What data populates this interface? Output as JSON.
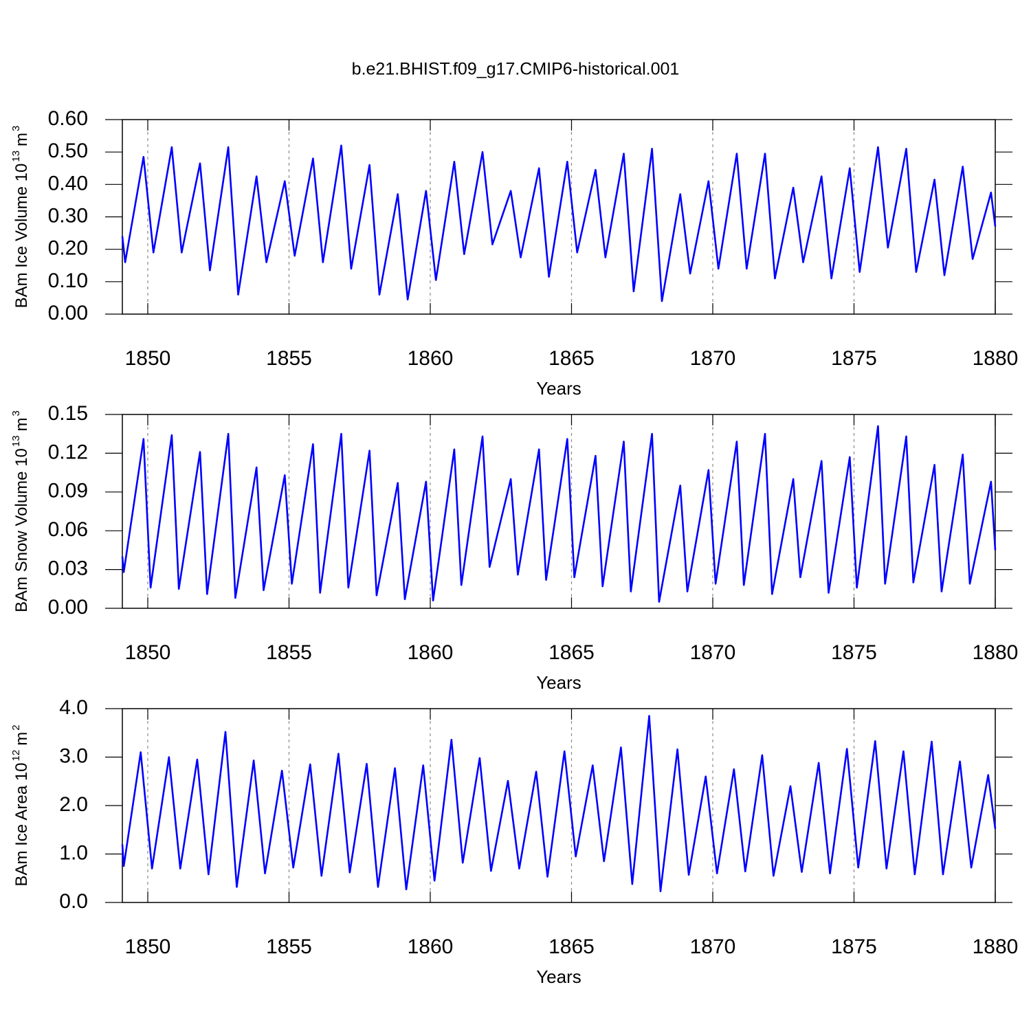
{
  "chart_data": [
    {
      "type": "line",
      "title": "b.e21.BHIST.f09_g17.CMIP6-historical.001",
      "xlabel": "Years",
      "ylabel": [
        "BAm Ice Volume 10",
        "13",
        "m",
        "3"
      ],
      "color": "#0000ff",
      "xgrid": true,
      "xlim": [
        1849.1,
        1880
      ],
      "xticks": [
        1850,
        1855,
        1860,
        1865,
        1870,
        1875,
        1880
      ],
      "ylim": [
        0,
        0.6
      ],
      "yticks": [
        {
          "value": 0,
          "label": "0.00"
        },
        {
          "value": 0.1,
          "label": "0.10"
        },
        {
          "value": 0.2,
          "label": "0.20"
        },
        {
          "value": 0.3,
          "label": "0.30"
        },
        {
          "value": 0.4,
          "label": "0.40"
        },
        {
          "value": 0.5,
          "label": "0.50"
        },
        {
          "value": 0.6,
          "label": "0.60"
        }
      ],
      "x": [
        1849.1,
        1849.2,
        1849.85,
        1850.2,
        1850.85,
        1851.2,
        1851.85,
        1852.2,
        1852.85,
        1853.2,
        1853.85,
        1854.2,
        1854.85,
        1855.2,
        1855.85,
        1856.2,
        1856.85,
        1857.2,
        1857.85,
        1858.2,
        1858.85,
        1859.2,
        1859.85,
        1860.2,
        1860.85,
        1861.2,
        1861.85,
        1862.2,
        1862.85,
        1863.2,
        1863.85,
        1864.2,
        1864.85,
        1865.2,
        1865.85,
        1866.2,
        1866.85,
        1867.2,
        1867.85,
        1868.2,
        1868.85,
        1869.2,
        1869.85,
        1870.2,
        1870.85,
        1871.2,
        1871.85,
        1872.2,
        1872.85,
        1873.2,
        1873.85,
        1874.2,
        1874.85,
        1875.2,
        1875.85,
        1876.2,
        1876.85,
        1877.2,
        1877.85,
        1878.2,
        1878.85,
        1879.2,
        1879.85,
        1880.0
      ],
      "values": [
        0.24,
        0.16,
        0.485,
        0.19,
        0.515,
        0.19,
        0.465,
        0.135,
        0.515,
        0.06,
        0.425,
        0.16,
        0.41,
        0.18,
        0.48,
        0.16,
        0.52,
        0.14,
        0.46,
        0.06,
        0.37,
        0.045,
        0.38,
        0.105,
        0.47,
        0.185,
        0.5,
        0.215,
        0.38,
        0.175,
        0.45,
        0.115,
        0.47,
        0.19,
        0.445,
        0.175,
        0.495,
        0.07,
        0.51,
        0.04,
        0.37,
        0.125,
        0.41,
        0.14,
        0.495,
        0.14,
        0.495,
        0.11,
        0.39,
        0.16,
        0.425,
        0.11,
        0.45,
        0.13,
        0.515,
        0.205,
        0.51,
        0.13,
        0.415,
        0.12,
        0.455,
        0.17,
        0.375,
        0.27
      ]
    },
    {
      "type": "line",
      "xlabel": "Years",
      "ylabel": [
        "BAm Snow Volume 10",
        "13",
        "m",
        "3"
      ],
      "color": "#0000ff",
      "xgrid": true,
      "xlim": [
        1849.1,
        1880
      ],
      "xticks": [
        1850,
        1855,
        1860,
        1865,
        1870,
        1875,
        1880
      ],
      "ylim": [
        0,
        0.15
      ],
      "yticks": [
        {
          "value": 0,
          "label": "0.00"
        },
        {
          "value": 0.03,
          "label": "0.03"
        },
        {
          "value": 0.06,
          "label": "0.06"
        },
        {
          "value": 0.09,
          "label": "0.09"
        },
        {
          "value": 0.12,
          "label": "0.12"
        },
        {
          "value": 0.15,
          "label": "0.15"
        }
      ],
      "x": [
        1849.1,
        1849.15,
        1849.85,
        1850.1,
        1850.85,
        1851.1,
        1851.85,
        1852.1,
        1852.85,
        1853.1,
        1853.85,
        1854.1,
        1854.85,
        1855.1,
        1855.85,
        1856.1,
        1856.85,
        1857.1,
        1857.85,
        1858.1,
        1858.85,
        1859.1,
        1859.85,
        1860.1,
        1860.85,
        1861.1,
        1861.85,
        1862.1,
        1862.85,
        1863.1,
        1863.85,
        1864.1,
        1864.85,
        1865.1,
        1865.85,
        1866.1,
        1866.85,
        1867.1,
        1867.85,
        1868.1,
        1868.85,
        1869.1,
        1869.85,
        1870.1,
        1870.85,
        1871.1,
        1871.85,
        1872.1,
        1872.85,
        1873.1,
        1873.85,
        1874.1,
        1874.85,
        1875.1,
        1875.85,
        1876.1,
        1876.85,
        1877.1,
        1877.85,
        1878.1,
        1878.85,
        1879.1,
        1879.85,
        1880.0
      ],
      "values": [
        0.04,
        0.028,
        0.131,
        0.016,
        0.134,
        0.015,
        0.121,
        0.011,
        0.135,
        0.008,
        0.109,
        0.014,
        0.103,
        0.019,
        0.127,
        0.012,
        0.135,
        0.016,
        0.122,
        0.01,
        0.097,
        0.007,
        0.098,
        0.006,
        0.123,
        0.018,
        0.133,
        0.032,
        0.1,
        0.026,
        0.123,
        0.022,
        0.131,
        0.024,
        0.118,
        0.017,
        0.129,
        0.013,
        0.135,
        0.005,
        0.095,
        0.013,
        0.107,
        0.019,
        0.129,
        0.018,
        0.135,
        0.011,
        0.1,
        0.024,
        0.114,
        0.012,
        0.117,
        0.016,
        0.141,
        0.019,
        0.133,
        0.02,
        0.111,
        0.013,
        0.119,
        0.019,
        0.098,
        0.045
      ]
    },
    {
      "type": "line",
      "xlabel": "Years",
      "ylabel": [
        "BAm Ice Area 10",
        "12",
        "m",
        "2"
      ],
      "color": "#0000ff",
      "xgrid": true,
      "xlim": [
        1849.1,
        1880
      ],
      "xticks": [
        1850,
        1855,
        1860,
        1865,
        1870,
        1875,
        1880
      ],
      "ylim": [
        0,
        4
      ],
      "yticks": [
        {
          "value": 0,
          "label": "0.0"
        },
        {
          "value": 1,
          "label": "1.0"
        },
        {
          "value": 2,
          "label": "2.0"
        },
        {
          "value": 3,
          "label": "3.0"
        },
        {
          "value": 4,
          "label": "4.0"
        }
      ],
      "x": [
        1849.1,
        1849.15,
        1849.75,
        1850.15,
        1850.75,
        1851.15,
        1851.75,
        1852.15,
        1852.75,
        1853.15,
        1853.75,
        1854.15,
        1854.75,
        1855.15,
        1855.75,
        1856.15,
        1856.75,
        1857.15,
        1857.75,
        1858.15,
        1858.75,
        1859.15,
        1859.75,
        1860.15,
        1860.75,
        1861.15,
        1861.75,
        1862.15,
        1862.75,
        1863.15,
        1863.75,
        1864.15,
        1864.75,
        1865.15,
        1865.75,
        1866.15,
        1866.75,
        1867.15,
        1867.75,
        1868.15,
        1868.75,
        1869.15,
        1869.75,
        1870.15,
        1870.75,
        1871.15,
        1871.75,
        1872.15,
        1872.75,
        1873.15,
        1873.75,
        1874.15,
        1874.75,
        1875.15,
        1875.75,
        1876.15,
        1876.75,
        1877.15,
        1877.75,
        1878.15,
        1878.75,
        1879.15,
        1879.75,
        1880.0
      ],
      "values": [
        1.2,
        0.75,
        3.1,
        0.7,
        3.0,
        0.7,
        2.95,
        0.58,
        3.52,
        0.32,
        2.93,
        0.6,
        2.72,
        0.72,
        2.85,
        0.55,
        3.07,
        0.62,
        2.86,
        0.32,
        2.77,
        0.27,
        2.83,
        0.45,
        3.36,
        0.82,
        2.98,
        0.65,
        2.51,
        0.7,
        2.7,
        0.53,
        3.12,
        0.95,
        2.83,
        0.85,
        3.2,
        0.38,
        3.85,
        0.23,
        3.16,
        0.57,
        2.6,
        0.6,
        2.75,
        0.64,
        3.04,
        0.55,
        2.4,
        0.63,
        2.88,
        0.6,
        3.17,
        0.72,
        3.33,
        0.7,
        3.12,
        0.58,
        3.32,
        0.58,
        2.91,
        0.72,
        2.63,
        1.52
      ]
    }
  ]
}
